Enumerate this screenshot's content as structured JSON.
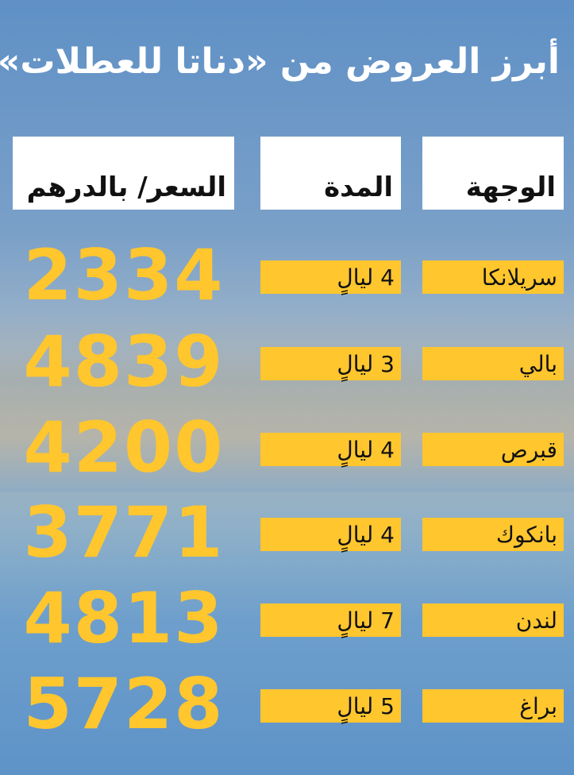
{
  "title": "أبرز العروض من «دناتا للعطلات»",
  "headers": {
    "destination": "الوجهة",
    "duration": "المدة",
    "price": "السعر/ بالدرهم"
  },
  "rows": [
    {
      "destination": "سريلانكا",
      "duration": "4 ليالٍ",
      "price": "2334"
    },
    {
      "destination": "بالي",
      "duration": "3 ليالٍ",
      "price": "4839"
    },
    {
      "destination": "قبرص",
      "duration": "4 ليالٍ",
      "price": "4200"
    },
    {
      "destination": "بانكوك",
      "duration": "4 ليالٍ",
      "price": "3771"
    },
    {
      "destination": "لندن",
      "duration": "7 ليالٍ",
      "price": "4813"
    },
    {
      "destination": "براغ",
      "duration": "5 ليالٍ",
      "price": "5728"
    }
  ],
  "colors": {
    "accent": "#ffc62e",
    "header_bg": "#ffffff"
  }
}
